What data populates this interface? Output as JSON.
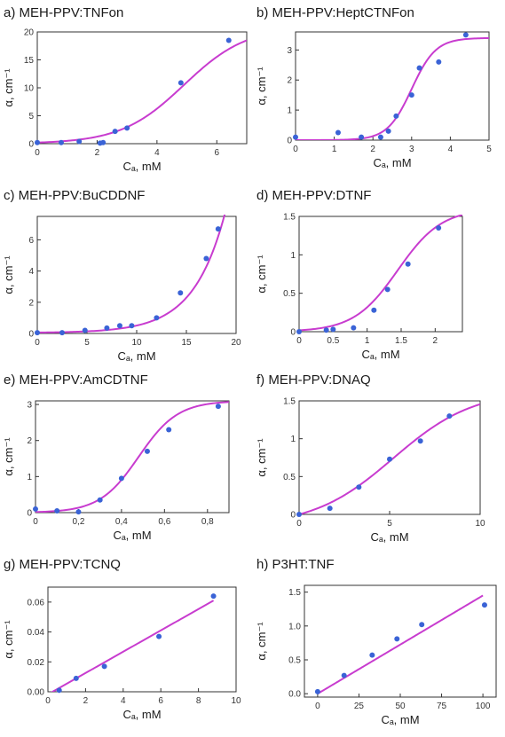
{
  "figure": {
    "colors": {
      "point": "#3a63d6",
      "fit": "#c83ccf",
      "axis": "#333333"
    }
  },
  "chart_data": [
    {
      "panel_label": "a)",
      "title": "MEH-PPV:TNFon",
      "type": "scatter",
      "xlabel": "Cₐ, mM",
      "ylabel": "α, cm⁻¹",
      "xlim": [
        0,
        7
      ],
      "ylim": [
        0,
        20
      ],
      "xticks": [
        0,
        2,
        4,
        6
      ],
      "yticks": [
        0,
        5,
        10,
        15,
        20
      ],
      "xtick_labels": [
        "0",
        "2",
        "4",
        "6"
      ],
      "ytick_labels": [
        "0",
        "5",
        "10",
        "15",
        "20"
      ],
      "series": [
        {
          "kind": "points",
          "x": [
            0,
            0.8,
            1.4,
            2.1,
            2.2,
            2.6,
            3.0,
            4.8,
            6.4
          ],
          "y": [
            0.2,
            0.2,
            0.4,
            0.1,
            0.2,
            2.2,
            2.8,
            10.9,
            18.5
          ]
        },
        {
          "kind": "fit",
          "curve": "sigmoid",
          "params": {
            "a": 21,
            "x0": 4.9,
            "k": 0.95
          }
        }
      ]
    },
    {
      "panel_label": "b)",
      "title": "MEH-PPV:HeptCTNFon",
      "type": "scatter",
      "xlabel": "Cₐ, mM",
      "ylabel": "α, cm⁻¹",
      "xlim": [
        0,
        5
      ],
      "ylim": [
        0,
        3.6
      ],
      "xticks": [
        0,
        1,
        2,
        3,
        4,
        5
      ],
      "yticks": [
        0,
        1,
        2,
        3
      ],
      "xtick_labels": [
        "0",
        "1",
        "2",
        "3",
        "4",
        "5"
      ],
      "ytick_labels": [
        "0",
        "1",
        "2",
        "3"
      ],
      "series": [
        {
          "kind": "points",
          "x": [
            0,
            1.1,
            1.7,
            2.2,
            2.4,
            2.6,
            3.0,
            3.2,
            3.7,
            4.4
          ],
          "y": [
            0.1,
            0.25,
            0.1,
            0.1,
            0.3,
            0.8,
            1.5,
            2.4,
            2.6,
            3.5
          ]
        },
        {
          "kind": "fit",
          "curve": "sigmoid",
          "params": {
            "a": 3.4,
            "x0": 3.0,
            "k": 3.2
          }
        }
      ]
    },
    {
      "panel_label": "c)",
      "title": "MEH-PPV:BuCDDNF",
      "type": "scatter",
      "xlabel": "Cₐ, mM",
      "ylabel": "α, cm⁻¹",
      "xlim": [
        0,
        20
      ],
      "ylim": [
        0,
        7.5
      ],
      "xticks": [
        0,
        5,
        10,
        15,
        20
      ],
      "yticks": [
        0,
        2,
        4,
        6
      ],
      "xtick_labels": [
        "0",
        "5",
        "10",
        "15",
        "20"
      ],
      "ytick_labels": [
        "0",
        "2",
        "4",
        "6"
      ],
      "series": [
        {
          "kind": "points",
          "x": [
            0,
            2.5,
            4.8,
            7.0,
            8.3,
            9.5,
            12.0,
            14.4,
            17.0,
            18.2
          ],
          "y": [
            0.05,
            0.05,
            0.2,
            0.35,
            0.5,
            0.5,
            1.0,
            2.6,
            4.8,
            6.7
          ]
        },
        {
          "kind": "fit",
          "curve": "exponential",
          "params": {
            "a": 0.02,
            "b": 0.315,
            "c": 0.04
          }
        }
      ]
    },
    {
      "panel_label": "d)",
      "title": "MEH-PPV:DTNF",
      "type": "scatter",
      "xlabel": "Cₐ, mM",
      "ylabel": "α, cm⁻¹",
      "xlim": [
        0,
        2.4
      ],
      "ylim": [
        0,
        1.5
      ],
      "xticks": [
        0,
        0.5,
        1,
        1.5,
        2
      ],
      "yticks": [
        0,
        0.5,
        1,
        1.5
      ],
      "xtick_labels": [
        "0",
        "0.5",
        "1",
        "1.5",
        "2"
      ],
      "ytick_labels": [
        "0",
        "0.5",
        "1",
        "1.5"
      ],
      "series": [
        {
          "kind": "points",
          "x": [
            0,
            0.4,
            0.5,
            0.8,
            1.1,
            1.3,
            1.6,
            2.05
          ],
          "y": [
            0,
            0.02,
            0.03,
            0.05,
            0.28,
            0.55,
            0.88,
            1.35
          ]
        },
        {
          "kind": "fit",
          "curve": "sigmoid",
          "params": {
            "a": 1.6,
            "x0": 1.45,
            "k": 3.1
          }
        }
      ]
    },
    {
      "panel_label": "e)",
      "title": "MEH-PPV:AmCDTNF",
      "type": "scatter",
      "xlabel": "Cₐ, mM",
      "ylabel": "α, cm⁻¹",
      "xlim": [
        0,
        0.9
      ],
      "ylim": [
        0,
        3.1
      ],
      "xticks": [
        0,
        0.2,
        0.4,
        0.6,
        0.8
      ],
      "yticks": [
        0,
        1,
        2,
        3
      ],
      "xtick_labels": [
        "0",
        "0,2",
        "0,4",
        "0,6",
        "0,8"
      ],
      "ytick_labels": [
        "0",
        "1",
        "2",
        "3"
      ],
      "series": [
        {
          "kind": "points",
          "x": [
            0,
            0.1,
            0.2,
            0.3,
            0.4,
            0.52,
            0.62,
            0.85
          ],
          "y": [
            0.1,
            0.05,
            0.02,
            0.35,
            0.95,
            1.7,
            2.3,
            2.95
          ]
        },
        {
          "kind": "fit",
          "curve": "sigmoid",
          "params": {
            "a": 3.1,
            "x0": 0.48,
            "k": 11
          }
        }
      ]
    },
    {
      "panel_label": "f)",
      "title": "MEH-PPV:DNAQ",
      "type": "scatter",
      "xlabel": "Cₐ, mM",
      "ylabel": "α, cm⁻¹",
      "xlim": [
        0,
        10
      ],
      "ylim": [
        0,
        1.5
      ],
      "xticks": [
        0,
        5,
        10
      ],
      "yticks": [
        0,
        0.5,
        1,
        1.5
      ],
      "xtick_labels": [
        "0",
        "5",
        "10"
      ],
      "ytick_labels": [
        "0",
        "0.5",
        "1",
        "1.5"
      ],
      "series": [
        {
          "kind": "points",
          "x": [
            0,
            1.7,
            3.3,
            5.0,
            6.7,
            8.3
          ],
          "y": [
            0,
            0.08,
            0.36,
            0.73,
            0.97,
            1.3
          ]
        },
        {
          "kind": "fit",
          "curve": "sigmoid",
          "params": {
            "a": 1.8,
            "x0": 5.2,
            "k": 0.45,
            "offset": true
          }
        }
      ]
    },
    {
      "panel_label": "g)",
      "title": "MEH-PPV:TCNQ",
      "type": "scatter",
      "xlabel": "Cₐ, mM",
      "ylabel": "α, cm⁻¹",
      "xlim": [
        0,
        10
      ],
      "ylim": [
        0,
        0.07
      ],
      "xticks": [
        0,
        2,
        4,
        6,
        8,
        10
      ],
      "yticks": [
        0,
        0.02,
        0.04,
        0.06
      ],
      "xtick_labels": [
        "0",
        "2",
        "4",
        "6",
        "8",
        "10"
      ],
      "ytick_labels": [
        "0.00",
        "0.02",
        "0.04",
        "0.06"
      ],
      "series": [
        {
          "kind": "points",
          "x": [
            0.6,
            1.5,
            3.0,
            5.9,
            8.8
          ],
          "y": [
            0.001,
            0.009,
            0.017,
            0.037,
            0.064
          ]
        },
        {
          "kind": "fit",
          "curve": "line",
          "params": {
            "x0": 0.1,
            "y0": -0.001,
            "x1": 8.8,
            "y1": 0.061
          }
        }
      ]
    },
    {
      "panel_label": "h)",
      "title": "P3HT:TNF",
      "type": "scatter",
      "xlabel": "Cₐ, mM",
      "ylabel": "α, cm⁻¹",
      "xlim": [
        -8,
        108
      ],
      "ylim": [
        -0.05,
        1.6
      ],
      "xticks": [
        0,
        25,
        50,
        75,
        100
      ],
      "yticks": [
        0,
        0.5,
        1,
        1.5
      ],
      "xtick_labels": [
        "0",
        "25",
        "50",
        "75",
        "100"
      ],
      "ytick_labels": [
        "0.0",
        "0.5",
        "1.0",
        "1.5"
      ],
      "series": [
        {
          "kind": "points",
          "x": [
            0,
            16,
            33,
            48,
            63,
            101
          ],
          "y": [
            0.03,
            0.27,
            0.57,
            0.81,
            1.02,
            1.31
          ]
        },
        {
          "kind": "fit",
          "curve": "line",
          "params": {
            "x0": 0,
            "y0": 0.0,
            "x1": 100,
            "y1": 1.45
          }
        }
      ]
    }
  ]
}
